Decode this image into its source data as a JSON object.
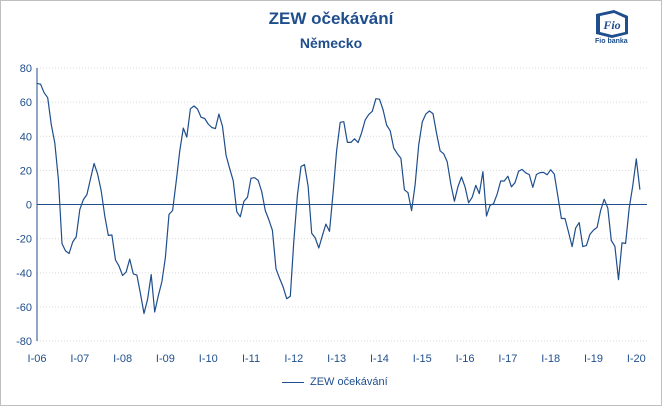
{
  "chart_data": {
    "type": "line",
    "title": "ZEW očekávání",
    "subtitle": "Německo",
    "xlabel": "",
    "ylabel": "",
    "ylim": [
      -80,
      80
    ],
    "yticks": [
      "80",
      "60",
      "40",
      "20",
      "0",
      "-20",
      "-40",
      "-60",
      "-80"
    ],
    "x_tick_labels": [
      "I-06",
      "I-07",
      "I-08",
      "I-09",
      "I-10",
      "I-11",
      "I-12",
      "I-13",
      "I-14",
      "I-15",
      "I-16",
      "I-17",
      "I-18",
      "I-19",
      "I-20"
    ],
    "grid": true,
    "legend_position": "bottom",
    "series": [
      {
        "name": "ZEW očekávání",
        "color": "#1f4e8c",
        "x_start": "2006-01",
        "frequency": "monthly",
        "values": [
          71.0,
          70.5,
          65.5,
          62.6,
          46.7,
          36.1,
          14.7,
          -22.9,
          -27.2,
          -28.7,
          -22.0,
          -19.0,
          -3.0,
          2.9,
          5.8,
          15.1,
          24.0,
          17.8,
          8.0,
          -6.8,
          -18.1,
          -17.9,
          -32.5,
          -36.1,
          -41.6,
          -39.5,
          -32.0,
          -40.7,
          -41.4,
          -52.4,
          -63.9,
          -55.5,
          -41.1,
          -63.0,
          -53.5,
          -45.2,
          -31.0,
          -5.8,
          -3.5,
          13.0,
          31.1,
          44.8,
          39.5,
          56.1,
          57.7,
          56.0,
          51.1,
          50.4,
          47.2,
          45.1,
          44.5,
          53.0,
          45.8,
          28.7,
          21.2,
          14.0,
          -4.3,
          -7.2,
          1.8,
          4.3,
          15.4,
          15.7,
          14.1,
          7.6,
          -3.6,
          -9.0,
          -15.1,
          -37.6,
          -43.3,
          -48.3,
          -55.2,
          -53.8,
          -21.6,
          5.4,
          22.3,
          23.4,
          10.8,
          -16.9,
          -19.6,
          -25.5,
          -18.2,
          -11.5,
          -15.7,
          6.9,
          31.5,
          48.2,
          48.5,
          36.4,
          36.4,
          38.5,
          36.3,
          42.0,
          49.6,
          52.8,
          54.6,
          62.0,
          61.7,
          55.7,
          46.6,
          43.2,
          33.1,
          29.8,
          27.1,
          8.6,
          6.9,
          -3.6,
          11.5,
          34.9,
          48.4,
          53.0,
          54.8,
          53.3,
          41.9,
          31.5,
          29.7,
          25.0,
          12.1,
          1.9,
          10.4,
          16.1,
          10.2,
          1.0,
          4.3,
          11.2,
          6.4,
          19.2,
          -6.8,
          -0.5,
          0.5,
          6.2,
          13.8,
          13.8,
          16.6,
          10.4,
          12.8,
          19.5,
          20.6,
          18.6,
          17.5,
          10.0,
          17.6,
          18.7,
          18.8,
          17.4,
          20.4,
          17.8,
          5.1,
          -8.2,
          -8.2,
          -16.1,
          -24.7,
          -13.7,
          -10.6,
          -24.7,
          -24.1,
          -17.5,
          -15.0,
          -13.4,
          -3.6,
          3.1,
          -2.1,
          -21.1,
          -24.5,
          -44.1,
          -22.5,
          -22.8,
          -2.1,
          10.7,
          26.7,
          8.7
        ]
      }
    ]
  },
  "legend": {
    "label": "ZEW očekávání"
  },
  "brand": {
    "logo_text": "Fio banka",
    "logo_color": "#1f4e8c"
  }
}
